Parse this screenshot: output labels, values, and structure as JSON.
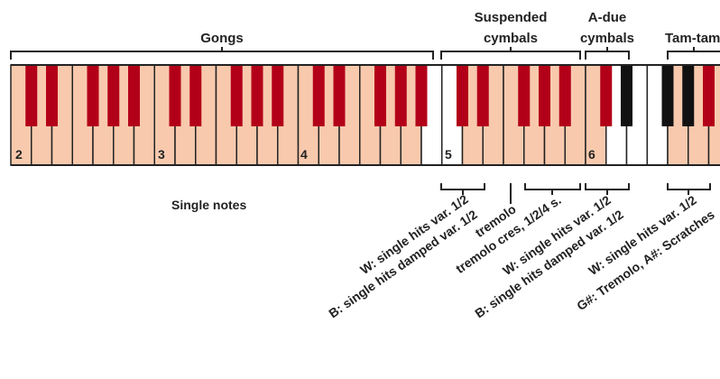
{
  "groups": {
    "gongs": "Gongs",
    "suspended_line1": "Suspended",
    "suspended_line2": "cymbals",
    "adue_line1": "A-due",
    "adue_line2": "cymbals",
    "tamtam": "Tam-tam"
  },
  "octave_numbers": [
    "2",
    "3",
    "4",
    "5",
    "6"
  ],
  "single_notes": "Single notes",
  "articulations": {
    "gong5_white": "W: single hits var. 1/2",
    "gong5_black": "B: single hits damped var. 1/2",
    "tremolo": "tremolo",
    "tremolo_cres": "tremolo cres, 1/2/4 s.",
    "adue_white": "W: single hits var. 1/2",
    "adue_black": "B: single hits damped var. 1/2",
    "tamtam_white": "W: single hits var. 1/2",
    "tamtam_sharps": "G#: Tremolo, A#: Scratches"
  },
  "colors": {
    "white_key": "#f8c9ad",
    "white_key_blank": "#ffffff",
    "black_key": "#b30019",
    "black_key_dark": "#111111",
    "outline": "#222222"
  }
}
